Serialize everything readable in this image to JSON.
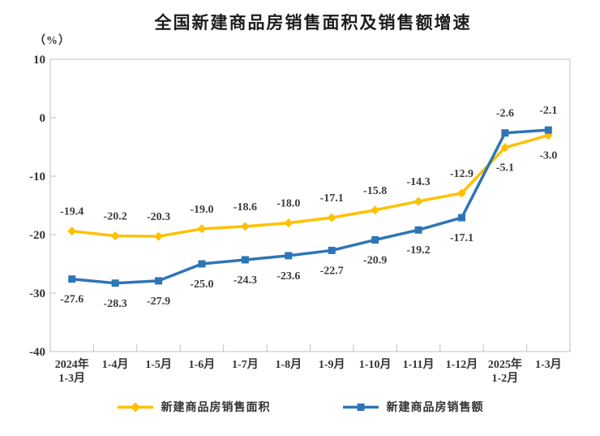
{
  "title": "全国新建商品房销售面积及销售额增速",
  "unit_label": "（%）",
  "chart_data": {
    "type": "line",
    "title": "全国新建商品房销售面积及销售额增速",
    "ylabel": "（%）",
    "categories": [
      "2024年\n1-3月",
      "1-4月",
      "1-5月",
      "1-6月",
      "1-7月",
      "1-8月",
      "1-9月",
      "1-10月",
      "1-11月",
      "1-12月",
      "2025年\n1-2月",
      "1-3月"
    ],
    "series": [
      {
        "name": "新建商品房销售面积",
        "color": "#FFC000",
        "marker": "diamond",
        "values": [
          -19.4,
          -20.2,
          -20.3,
          -19.0,
          -18.6,
          -18.0,
          -17.1,
          -15.8,
          -14.3,
          -12.9,
          -5.1,
          -3.0
        ],
        "label_sides": [
          "above",
          "above",
          "above",
          "above",
          "above",
          "above",
          "above",
          "above",
          "above",
          "above",
          "below",
          "below"
        ]
      },
      {
        "name": "新建商品房销售额",
        "color": "#2E75B6",
        "marker": "square",
        "values": [
          -27.6,
          -28.3,
          -27.9,
          -25.0,
          -24.3,
          -23.6,
          -22.7,
          -20.9,
          -19.2,
          -17.1,
          -2.6,
          -2.1
        ],
        "label_sides": [
          "below",
          "below",
          "below",
          "below",
          "below",
          "below",
          "below",
          "below",
          "below",
          "below",
          "above",
          "above"
        ]
      }
    ],
    "ylim": [
      -40,
      10
    ],
    "yticks": [
      10,
      0,
      -10,
      -20,
      -30,
      -40
    ],
    "grid": false,
    "legend_position": "bottom",
    "axis_color": "#BFBFBF",
    "text_color": "#333333",
    "label_color": "#3b3b3b"
  }
}
